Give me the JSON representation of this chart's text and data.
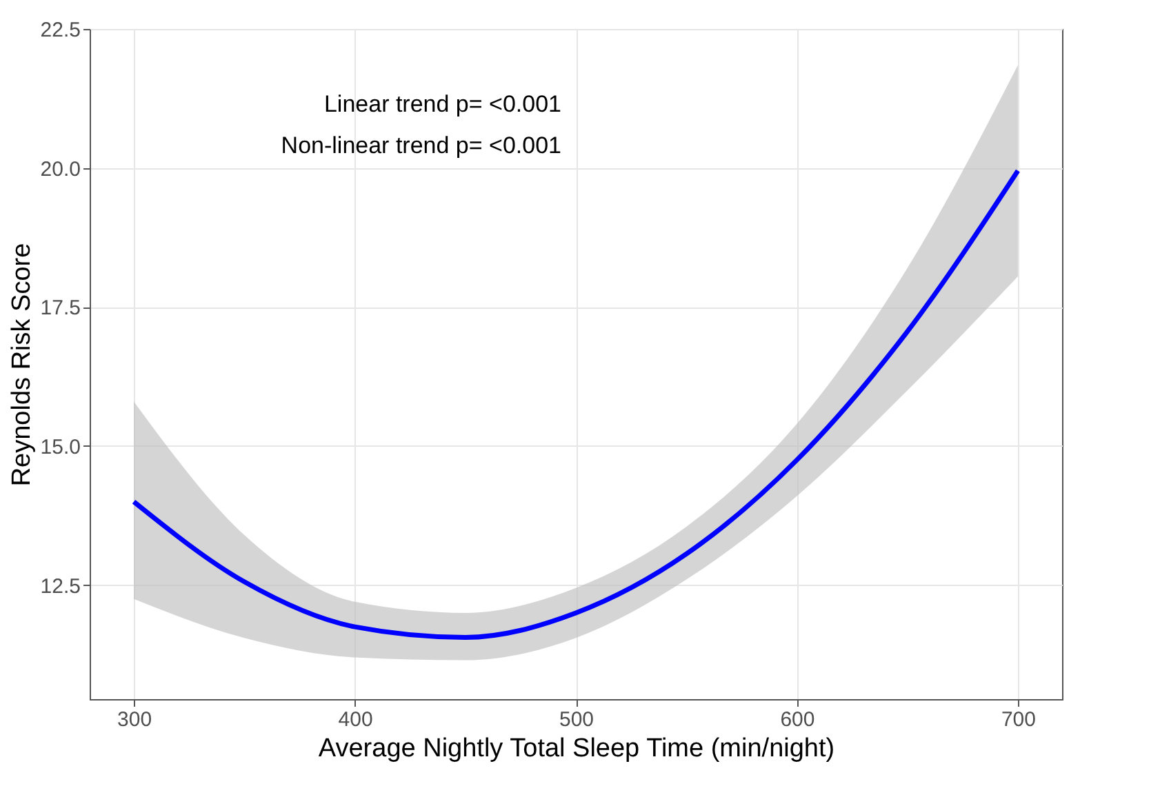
{
  "chart_data": {
    "type": "line",
    "xlabel": "Average Nightly Total Sleep Time (min/night)",
    "ylabel": "Reynolds Risk Score",
    "x": [
      300,
      350,
      400,
      450,
      500,
      550,
      600,
      650,
      700
    ],
    "series": [
      {
        "color": "#0000ff",
        "values": [
          14.0,
          12.56,
          11.75,
          11.56,
          12.0,
          13.06,
          14.75,
          17.06,
          19.95
        ],
        "lower": [
          12.25,
          11.55,
          11.2,
          11.15,
          11.55,
          12.6,
          14.1,
          16.0,
          18.05
        ],
        "upper": [
          15.8,
          13.4,
          12.2,
          12.0,
          12.45,
          13.55,
          15.4,
          18.2,
          21.85
        ]
      }
    ],
    "xlim": [
      280,
      720
    ],
    "xticks": [
      300,
      400,
      500,
      600,
      700
    ],
    "ylim": [
      10.45,
      22.5
    ],
    "yticks": [
      {
        "value": 12.5,
        "label": "12.5"
      },
      {
        "value": 15,
        "label": "15.0"
      },
      {
        "value": 17.5,
        "label": "17.5"
      },
      {
        "value": 20,
        "label": "20.0"
      },
      {
        "value": 22.5,
        "label": "22.5"
      }
    ],
    "grid": true,
    "marker": "none",
    "line_style": "solid",
    "annotations": [
      "Linear trend p= <0.001",
      "Non-linear trend p= <0.001"
    ]
  }
}
